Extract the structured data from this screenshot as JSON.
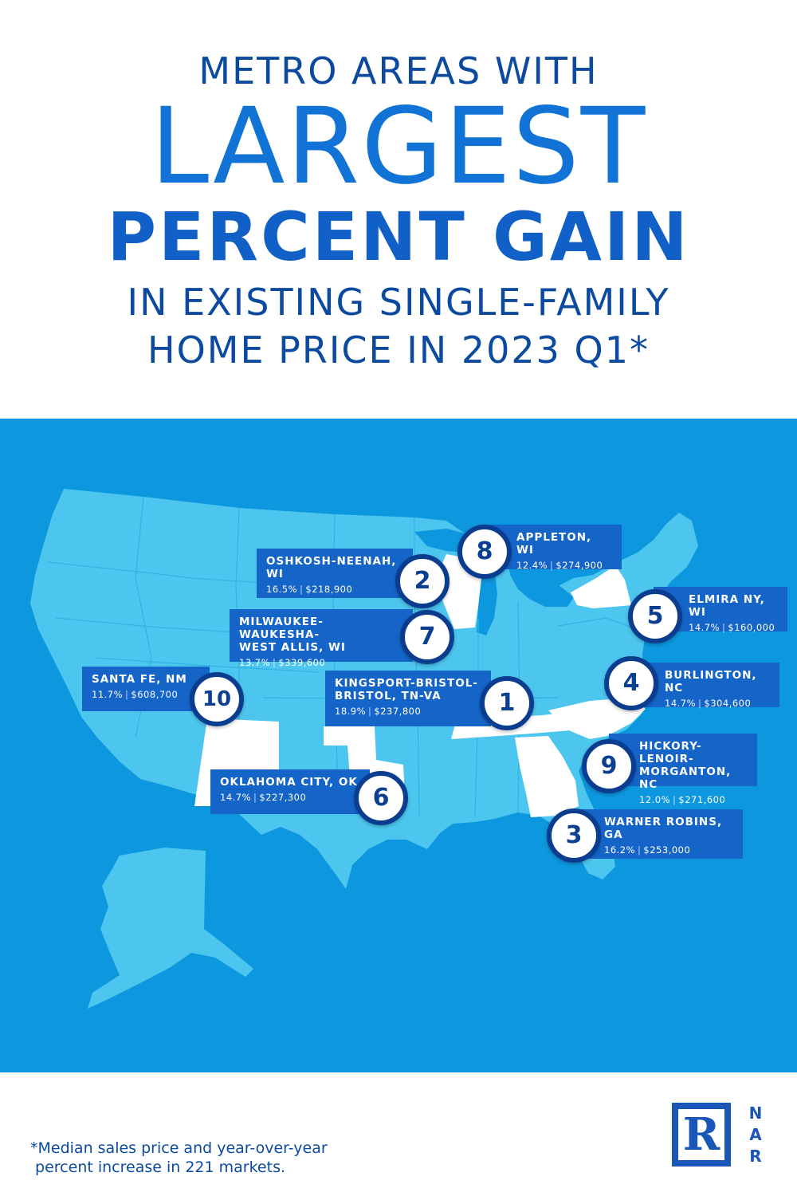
{
  "title": {
    "line1": "METRO AREAS WITH",
    "line2": "LARGEST",
    "line3": "PERCENT GAIN",
    "line4": "IN EXISTING SINGLE-FAMILY",
    "line5": "HOME PRICE IN 2023 Q1*"
  },
  "colors": {
    "ocean": "#0d97de",
    "land": "#4cc6ee",
    "highlight_state": "#ffffff",
    "card": "#1565c9",
    "pin_border": "#0a3d8f",
    "title": "#0b4a9e"
  },
  "metros": [
    {
      "rank": "1",
      "name_lines": [
        "KINGSPORT-BRISTOL-",
        "BRISTOL, TN-VA"
      ],
      "pct": "18.9%",
      "price": "$237,800"
    },
    {
      "rank": "2",
      "name_lines": [
        "OSHKOSH-NEENAH,",
        "WI"
      ],
      "pct": "16.5%",
      "price": "$218,900"
    },
    {
      "rank": "3",
      "name_lines": [
        "WARNER ROBINS, GA"
      ],
      "pct": "16.2%",
      "price": "$253,000"
    },
    {
      "rank": "4",
      "name_lines": [
        "BURLINGTON, NC"
      ],
      "pct": "14.7%",
      "price": "$304,600"
    },
    {
      "rank": "5",
      "name_lines": [
        "ELMIRA NY, WI"
      ],
      "pct": "14.7%",
      "price": "$160,000"
    },
    {
      "rank": "6",
      "name_lines": [
        "OKLAHOMA CITY, OK"
      ],
      "pct": "14.7%",
      "price": "$227,300"
    },
    {
      "rank": "7",
      "name_lines": [
        "MILWAUKEE-WAUKESHA-",
        "WEST ALLIS, WI"
      ],
      "pct": "13.7%",
      "price": "$339,600"
    },
    {
      "rank": "8",
      "name_lines": [
        "APPLETON, WI"
      ],
      "pct": "12.4%",
      "price": "$274,900"
    },
    {
      "rank": "9",
      "name_lines": [
        "HICKORY-LENOIR-",
        "MORGANTON, NC"
      ],
      "pct": "12.0%",
      "price": "$271,600"
    },
    {
      "rank": "10",
      "name_lines": [
        "SANTA FE, NM"
      ],
      "pct": "11.7%",
      "price": "$608,700"
    }
  ],
  "footnote": {
    "line1": "*Median sales price and year-over-year",
    "line2": " percent increase in 221 markets."
  },
  "logo": {
    "mark": "R",
    "letters": [
      "N",
      "A",
      "R"
    ]
  }
}
